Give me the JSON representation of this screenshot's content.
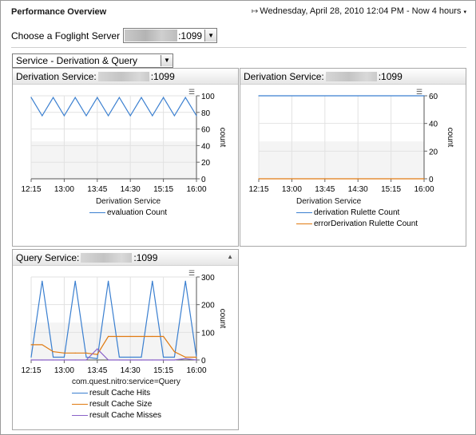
{
  "header": {
    "title": "Performance Overview",
    "date_text": "Wednesday, April 28, 2010 12:04 PM - Now 4 hours",
    "refresh_icon": "refresh-icon"
  },
  "server": {
    "label": "Choose a Foglight Server",
    "value_suffix": ":1099"
  },
  "view_select": {
    "value": "Service - Derivation & Query"
  },
  "panels": [
    {
      "title_prefix": "Derivation Service:",
      "title_suffix": ":1099",
      "legend_title": "Derivation  Service",
      "legend": [
        "evaluation Count"
      ]
    },
    {
      "title_prefix": "Derivation Service:",
      "title_suffix": ":1099",
      "legend_title": "Derivation  Service",
      "legend": [
        "derivation Rulette Count",
        "errorDerivation Rulette Count"
      ]
    },
    {
      "title_prefix": "Query Service:",
      "title_suffix": ":1099",
      "legend_title": "com.quest.nitro:service=Query",
      "legend": [
        "result Cache Hits",
        "result Cache Size",
        "result Cache Misses"
      ]
    }
  ],
  "chart_data": [
    {
      "type": "line",
      "x": [
        "12:15",
        "12:30",
        "12:45",
        "13:00",
        "13:15",
        "13:30",
        "13:45",
        "14:00",
        "14:15",
        "14:30",
        "14:45",
        "15:00",
        "15:15",
        "15:30",
        "15:45",
        "16:00"
      ],
      "xticks": [
        "12:15",
        "13:00",
        "13:45",
        "14:30",
        "15:15",
        "16:00"
      ],
      "ylabel": "count",
      "ylim": [
        0,
        100
      ],
      "yticks": [
        0,
        20,
        40,
        60,
        80,
        100
      ],
      "series": [
        {
          "name": "evaluation Count",
          "color": "#3a7fd0",
          "values": [
            98,
            76,
            98,
            76,
            98,
            76,
            98,
            76,
            98,
            76,
            98,
            76,
            98,
            76,
            98,
            76
          ]
        }
      ]
    },
    {
      "type": "line",
      "x": [
        "12:15",
        "16:00"
      ],
      "xticks": [
        "12:15",
        "13:00",
        "13:45",
        "14:30",
        "15:15",
        "16:00"
      ],
      "ylabel": "count",
      "ylim": [
        0,
        60
      ],
      "yticks": [
        0,
        20,
        40,
        60
      ],
      "series": [
        {
          "name": "derivation Rulette Count",
          "color": "#3a7fd0",
          "values": [
            60,
            60
          ]
        },
        {
          "name": "errorDerivation Rulette Count",
          "color": "#e07a10",
          "values": [
            0,
            0
          ]
        }
      ]
    },
    {
      "type": "line",
      "x": [
        "12:15",
        "12:30",
        "12:45",
        "13:00",
        "13:15",
        "13:30",
        "13:45",
        "14:00",
        "14:15",
        "14:30",
        "14:45",
        "15:00",
        "15:15",
        "15:30",
        "15:45",
        "16:00"
      ],
      "xticks": [
        "12:15",
        "13:00",
        "13:45",
        "14:30",
        "15:15",
        "16:00"
      ],
      "ylabel": "count",
      "ylim": [
        0,
        300
      ],
      "yticks": [
        0,
        100,
        200,
        300
      ],
      "series": [
        {
          "name": "result Cache Hits",
          "color": "#3a7fd0",
          "values": [
            10,
            285,
            10,
            10,
            285,
            10,
            5,
            285,
            10,
            10,
            10,
            285,
            10,
            10,
            285,
            10
          ]
        },
        {
          "name": "result Cache Size",
          "color": "#e07a10",
          "values": [
            55,
            55,
            30,
            25,
            25,
            25,
            20,
            85,
            85,
            85,
            85,
            85,
            85,
            30,
            10,
            10
          ]
        },
        {
          "name": "result Cache Misses",
          "color": "#8a62c8",
          "values": [
            0,
            0,
            0,
            0,
            0,
            0,
            40,
            0,
            0,
            0,
            0,
            0,
            0,
            0,
            5,
            0
          ]
        }
      ]
    }
  ]
}
